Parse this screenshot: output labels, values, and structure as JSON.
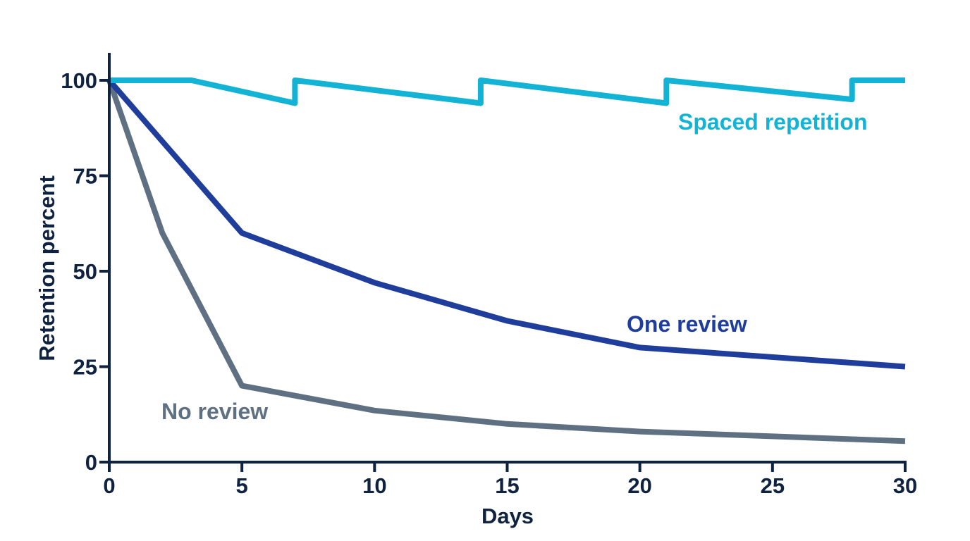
{
  "chart_data": {
    "type": "line",
    "title": "",
    "xlabel": "Days",
    "ylabel": "Retention percent",
    "xlim": [
      0,
      30
    ],
    "ylim": [
      0,
      100
    ],
    "xticks": [
      "0",
      "5",
      "10",
      "15",
      "20",
      "25",
      "30"
    ],
    "yticks": [
      "0",
      "25",
      "50",
      "75",
      "100"
    ],
    "grid": false,
    "legend": "inline labels",
    "series": [
      {
        "name": "Spaced repetition",
        "color": "#12b3d4",
        "x": [
          0,
          3.1,
          7,
          7,
          14,
          14,
          21,
          21,
          28,
          28,
          30
        ],
        "y": [
          100,
          100,
          94,
          100,
          94,
          100,
          94,
          100,
          95,
          100,
          100
        ]
      },
      {
        "name": "One review",
        "color": "#1f3d9b",
        "x": [
          0,
          5,
          10,
          15,
          20,
          30
        ],
        "y": [
          100,
          60,
          47,
          37,
          30,
          25
        ]
      },
      {
        "name": "No review",
        "color": "#5f7083",
        "x": [
          0,
          2,
          5,
          10,
          15,
          20,
          30
        ],
        "y": [
          100,
          60,
          20,
          13.5,
          10,
          8,
          5.5
        ]
      }
    ]
  }
}
